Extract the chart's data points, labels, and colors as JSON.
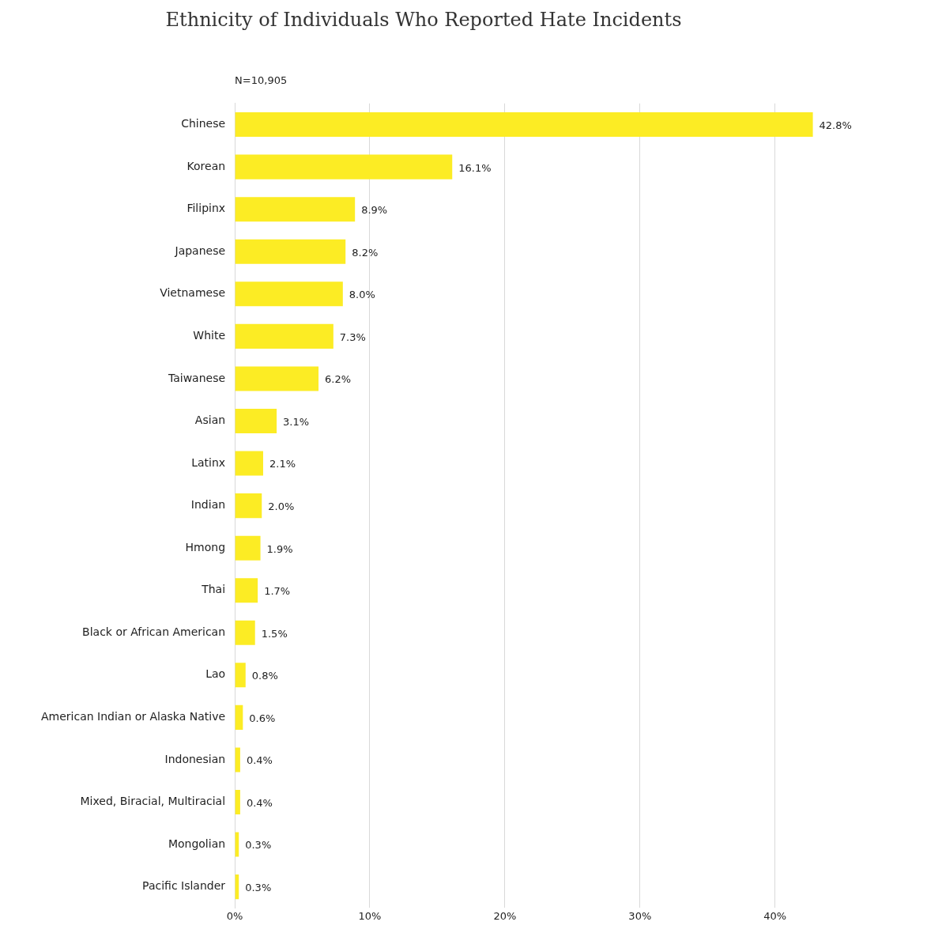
{
  "chart_data": {
    "type": "bar",
    "orientation": "horizontal",
    "title": "Ethnicity of Individuals Who Reported Hate Incidents",
    "subtitle": "N=10,905",
    "categories": [
      "Chinese",
      "Korean",
      "Filipinx",
      "Japanese",
      "Vietnamese",
      "White",
      "Taiwanese",
      "Asian",
      "Latinx",
      "Indian",
      "Hmong",
      "Thai",
      "Black or African American",
      "Lao",
      "American Indian or Alaska Native",
      "Indonesian",
      "Mixed, Biracial, Multiracial",
      "Mongolian",
      "Pacific Islander"
    ],
    "values": [
      42.8,
      16.1,
      8.9,
      8.2,
      8.0,
      7.3,
      6.2,
      3.1,
      2.1,
      2.0,
      1.9,
      1.7,
      1.5,
      0.8,
      0.6,
      0.4,
      0.4,
      0.3,
      0.3
    ],
    "value_labels": [
      "42.8%",
      "16.1%",
      "8.9%",
      "8.2%",
      "8.0%",
      "7.3%",
      "6.2%",
      "3.1%",
      "2.1%",
      "2.0%",
      "1.9%",
      "1.7%",
      "1.5%",
      "0.8%",
      "0.6%",
      "0.4%",
      "0.4%",
      "0.3%",
      "0.3%"
    ],
    "color": "#fcec24",
    "xlim": [
      0,
      43
    ],
    "xticks": [
      {
        "value": 0,
        "label": "0%"
      },
      {
        "value": 10,
        "label": "10%"
      },
      {
        "value": 20,
        "label": "20%"
      },
      {
        "value": 30,
        "label": "30%"
      },
      {
        "value": 40,
        "label": "40%"
      }
    ],
    "grid": "x",
    "legend": false
  }
}
